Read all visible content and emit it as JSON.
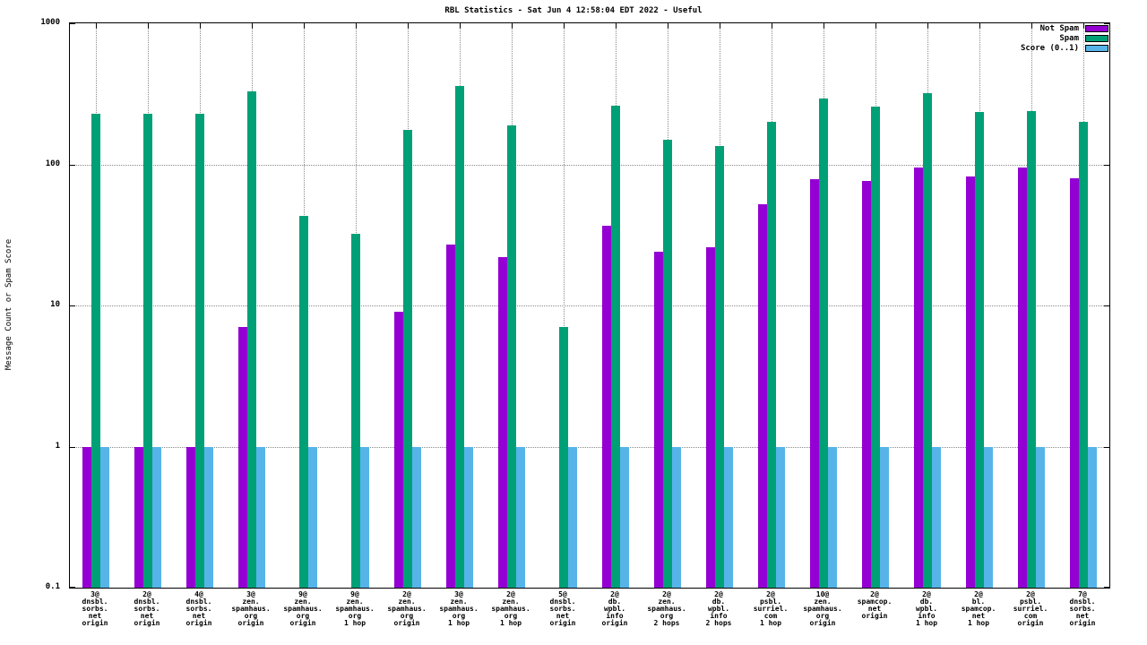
{
  "chart_data": {
    "type": "bar",
    "title": "RBL Statistics - Sat Jun  4 12:58:04 EDT 2022 - Useful",
    "ylabel": "Message Count or Spam Score",
    "xlabel": "",
    "yscale": "log",
    "ylim": [
      0.1,
      1000
    ],
    "ytick_values": [
      0.1,
      1,
      10,
      100,
      1000
    ],
    "ytick_labels": [
      "0.1",
      "1",
      "10",
      "100",
      "1000"
    ],
    "grid": "dotted",
    "legend_position": "top-right",
    "categories": [
      [
        "3@",
        "dnsbl.",
        "sorbs.",
        "net",
        "origin"
      ],
      [
        "2@",
        "dnsbl.",
        "sorbs.",
        "net",
        "origin"
      ],
      [
        "4@",
        "dnsbl.",
        "sorbs.",
        "net",
        "origin"
      ],
      [
        "3@",
        "zen.",
        "spamhaus.",
        "org",
        "origin"
      ],
      [
        "9@",
        "zen.",
        "spamhaus.",
        "org",
        "origin"
      ],
      [
        "9@",
        "zen.",
        "spamhaus.",
        "org",
        "1 hop"
      ],
      [
        "2@",
        "zen.",
        "spamhaus.",
        "org",
        "origin"
      ],
      [
        "3@",
        "zen.",
        "spamhaus.",
        "org",
        "1 hop"
      ],
      [
        "2@",
        "zen.",
        "spamhaus.",
        "org",
        "1 hop"
      ],
      [
        "5@",
        "dnsbl.",
        "sorbs.",
        "net",
        "origin"
      ],
      [
        "2@",
        "db.",
        "wpbl.",
        "info",
        "origin"
      ],
      [
        "2@",
        "zen.",
        "spamhaus.",
        "org",
        "2 hops"
      ],
      [
        "2@",
        "db.",
        "wpbl.",
        "info",
        "2 hops"
      ],
      [
        "2@",
        "psbl.",
        "surriel.",
        "com",
        "1 hop"
      ],
      [
        "10@",
        "zen.",
        "spamhaus.",
        "org",
        "origin"
      ],
      [
        "2@",
        "spamcop.",
        "net",
        "origin"
      ],
      [
        "2@",
        "db.",
        "wpbl.",
        "info",
        "1 hop"
      ],
      [
        "2@",
        "bl.",
        "spamcop.",
        "net",
        "1 hop"
      ],
      [
        "2@",
        "psbl.",
        "surriel.",
        "com",
        "origin"
      ],
      [
        "7@",
        "dnsbl.",
        "sorbs.",
        "net",
        "origin"
      ]
    ],
    "series": [
      {
        "name": "Not Spam",
        "color": "#9400d3",
        "values": [
          1,
          1,
          1,
          7,
          null,
          null,
          9,
          27,
          22,
          null,
          37,
          24,
          26,
          52,
          78,
          76,
          95,
          82,
          95,
          80
        ]
      },
      {
        "name": "Spam",
        "color": "#00a077",
        "values": [
          230,
          230,
          230,
          330,
          43,
          32,
          175,
          360,
          190,
          7,
          260,
          150,
          135,
          200,
          295,
          255,
          320,
          235,
          240,
          200
        ]
      },
      {
        "name": "Score (0..1)",
        "color": "#56b4e9",
        "values": [
          1,
          1,
          1,
          1,
          1,
          1,
          1,
          1,
          1,
          1,
          1,
          1,
          1,
          1,
          1,
          1,
          1,
          1,
          1,
          1
        ]
      }
    ]
  }
}
